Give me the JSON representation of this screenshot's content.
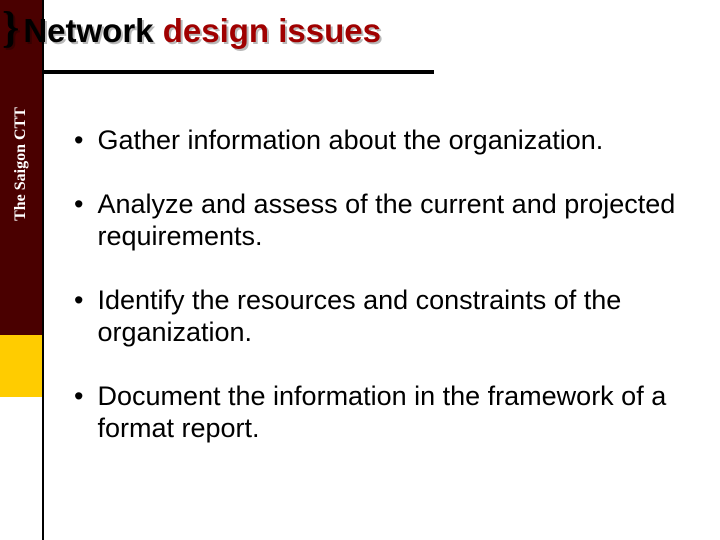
{
  "colors": {
    "stripe_dark": "#4a0000",
    "stripe_yellow": "#ffcc00",
    "title_accent": "#a00000",
    "text": "#000000",
    "background": "#ffffff"
  },
  "sidebar": {
    "vertical_label": "The Saigon CTT"
  },
  "header": {
    "brace": "}",
    "title_word1": "Network",
    "title_rest": "design issues"
  },
  "bullets": [
    {
      "text": "Gather information about the organization."
    },
    {
      "text": "Analyze and assess of the current and projected requirements."
    },
    {
      "text": "Identify the resources and constraints of the organization."
    },
    {
      "text": "Document the information in the framework of a format report."
    }
  ]
}
